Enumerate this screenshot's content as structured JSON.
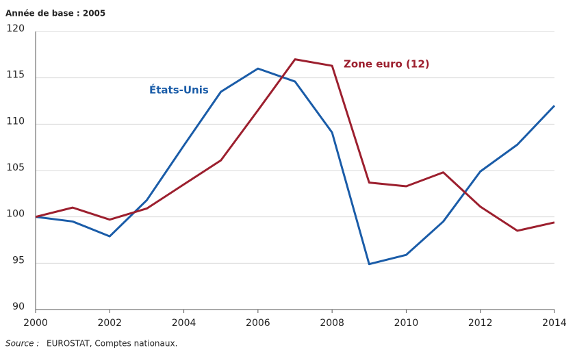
{
  "chart_data": {
    "type": "line",
    "subtitle": "Année de base : 2005",
    "x": [
      2000,
      2001,
      2002,
      2003,
      2004,
      2005,
      2006,
      2007,
      2008,
      2009,
      2010,
      2011,
      2012,
      2013,
      2014
    ],
    "series": [
      {
        "name": "États-Unis",
        "color": "#1a5ca8",
        "values": [
          100,
          99.5,
          97.9,
          101.8,
          107.7,
          113.5,
          116,
          114.6,
          109.1,
          94.9,
          95.9,
          99.5,
          104.9,
          107.8,
          112
        ]
      },
      {
        "name": "Zone euro (12)",
        "color": "#9c1f2e",
        "values": [
          100,
          101,
          99.7,
          100.9,
          103.5,
          106.1,
          111.5,
          117,
          116.3,
          103.7,
          103.3,
          104.8,
          101.1,
          98.5,
          99.4
        ]
      }
    ],
    "xlim": [
      2000,
      2014
    ],
    "xticks": [
      2000,
      2002,
      2004,
      2006,
      2008,
      2010,
      2012,
      2014
    ],
    "ylim": [
      90,
      120
    ],
    "yticks": [
      90,
      95,
      100,
      105,
      110,
      115,
      120
    ],
    "grid": true,
    "source": {
      "label": "Source :",
      "text": "EUROSTAT, Comptes nationaux."
    }
  }
}
